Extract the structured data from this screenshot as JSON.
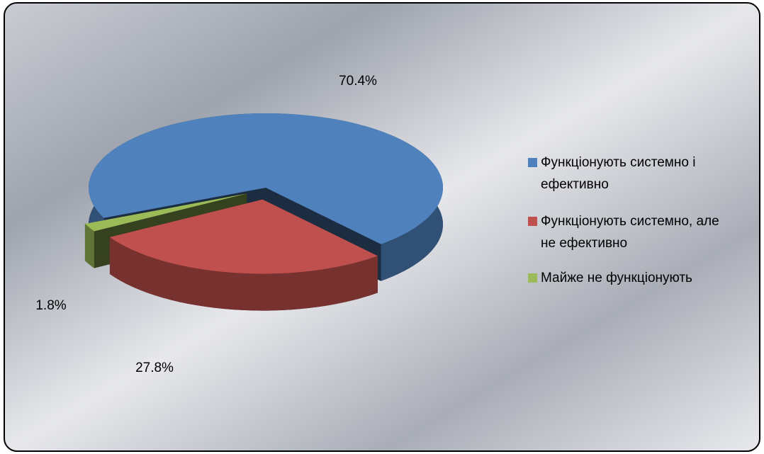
{
  "chart_data": {
    "type": "pie3d",
    "categories": [
      "Функціонують системно і ефективно",
      "Функціонують системно, але не ефективно",
      "Майже не функціонують"
    ],
    "values": [
      70.4,
      27.8,
      1.8
    ],
    "value_labels": [
      "70.4%",
      "27.8%",
      "1.8%"
    ],
    "colors": [
      "#4f81bd",
      "#c0504d",
      "#9bbb59"
    ],
    "legend": "right"
  }
}
